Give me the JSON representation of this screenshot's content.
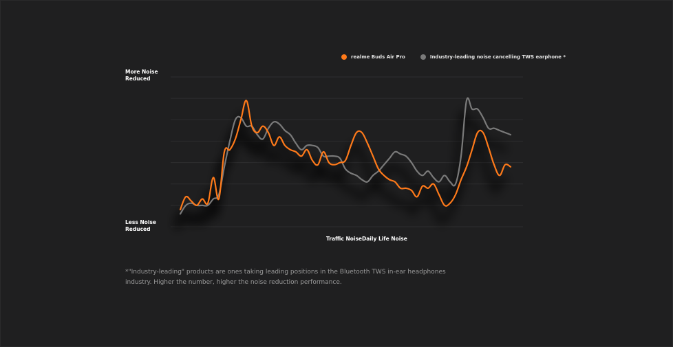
{
  "legend": {
    "series1": "realme Buds Air Pro",
    "series2": "Industry-leading noise cancelling TWS earphone *"
  },
  "axis": {
    "y_top": "More Noise\nReduced",
    "y_bottom": "Less Noise\nReduced",
    "x_label": "Traffic NoiseDaily Life Noise"
  },
  "footnote": "*\"Industry-leading\" products are ones taking leading positions in the Bluetooth TWS in-ear headphones industry. Higher the number, higher the noise reduction performance.",
  "colors": {
    "series1": "#ff7a1a",
    "series2": "#7a7a7a",
    "grid": "#2e2e2f",
    "background": "#1f1f20"
  },
  "chart_data": {
    "type": "line",
    "title": "",
    "xlabel": "Traffic NoiseDaily Life Noise",
    "ylabel": "",
    "ylim": [
      0,
      7
    ],
    "grid": true,
    "legend_position": "top-right",
    "x": [
      0,
      1,
      2,
      3,
      4,
      5,
      6,
      7,
      8,
      9,
      10,
      11,
      12,
      13,
      14,
      15,
      16,
      17,
      18,
      19,
      20,
      21,
      22,
      23,
      24,
      25,
      26,
      27,
      28,
      29,
      30,
      31,
      32,
      33,
      34,
      35,
      36,
      37,
      38,
      39,
      40,
      41,
      42,
      43,
      44,
      45,
      46,
      47,
      48,
      49,
      50,
      51,
      52,
      53,
      54,
      55,
      56,
      57,
      58,
      59,
      60
    ],
    "series": [
      {
        "name": "realme Buds Air Pro",
        "values": [
          0.8,
          1.4,
          1.2,
          1.0,
          1.3,
          1.1,
          2.3,
          1.3,
          3.5,
          3.6,
          4.1,
          5.0,
          5.9,
          4.7,
          4.4,
          4.7,
          4.4,
          3.8,
          4.2,
          3.8,
          3.6,
          3.5,
          3.3,
          3.6,
          3.1,
          2.9,
          3.5,
          3.0,
          2.9,
          3.0,
          3.1,
          3.8,
          4.4,
          4.4,
          3.9,
          3.3,
          2.7,
          2.4,
          2.2,
          2.1,
          1.8,
          1.8,
          1.7,
          1.4,
          1.9,
          1.8,
          2.0,
          1.5,
          1.0,
          1.1,
          1.5,
          2.2,
          2.8,
          3.6,
          4.4,
          4.4,
          3.7,
          2.9,
          2.4,
          2.9,
          2.8
        ]
      },
      {
        "name": "Industry-leading noise cancelling TWS earphone *",
        "values": [
          0.6,
          1.0,
          1.1,
          1.0,
          1.0,
          1.0,
          1.3,
          1.5,
          2.8,
          4.0,
          5.0,
          5.1,
          4.7,
          4.7,
          4.3,
          4.1,
          4.6,
          4.9,
          4.8,
          4.5,
          4.3,
          3.9,
          3.6,
          3.8,
          3.8,
          3.7,
          3.3,
          3.3,
          3.3,
          3.2,
          2.7,
          2.5,
          2.4,
          2.2,
          2.1,
          2.4,
          2.6,
          2.9,
          3.2,
          3.5,
          3.4,
          3.3,
          3.0,
          2.6,
          2.4,
          2.6,
          2.3,
          2.1,
          2.4,
          2.1,
          2.0,
          3.3,
          5.9,
          5.5,
          5.5,
          5.1,
          4.6,
          4.6,
          4.5,
          4.4,
          4.3
        ]
      }
    ]
  }
}
